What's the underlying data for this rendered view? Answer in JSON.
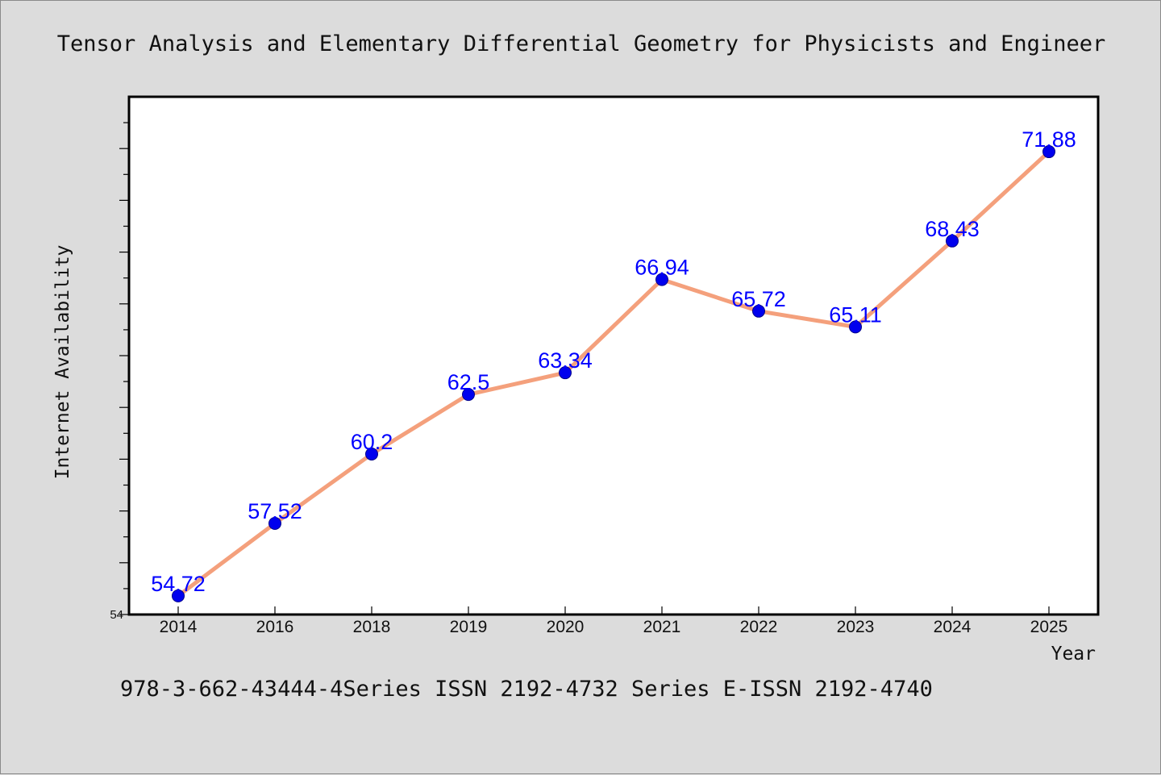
{
  "footer": "978-3-662-43444-4Series ISSN 2192-4732 Series E-ISSN 2192-4740",
  "colors": {
    "background": "#dcdcdc",
    "plot_background": "#ffffff",
    "line": "#f4a07c",
    "marker": "#0000ee",
    "label": "#0000ff"
  },
  "chart_data": {
    "type": "line",
    "title": "Tensor Analysis and Elementary Differential Geometry for Physicists and Engineer",
    "xlabel": "Year",
    "ylabel": "Internet Availability",
    "categories": [
      "2014",
      "2016",
      "2018",
      "2019",
      "2020",
      "2021",
      "2022",
      "2023",
      "2024",
      "2025"
    ],
    "series": [
      {
        "values": [
          54.72,
          57.52,
          60.2,
          62.5,
          63.34,
          66.94,
          65.72,
          65.11,
          68.43,
          71.88
        ]
      }
    ],
    "ylim": [
      54,
      74
    ],
    "yticks": [
      "54"
    ],
    "grid": false,
    "legend": false
  }
}
